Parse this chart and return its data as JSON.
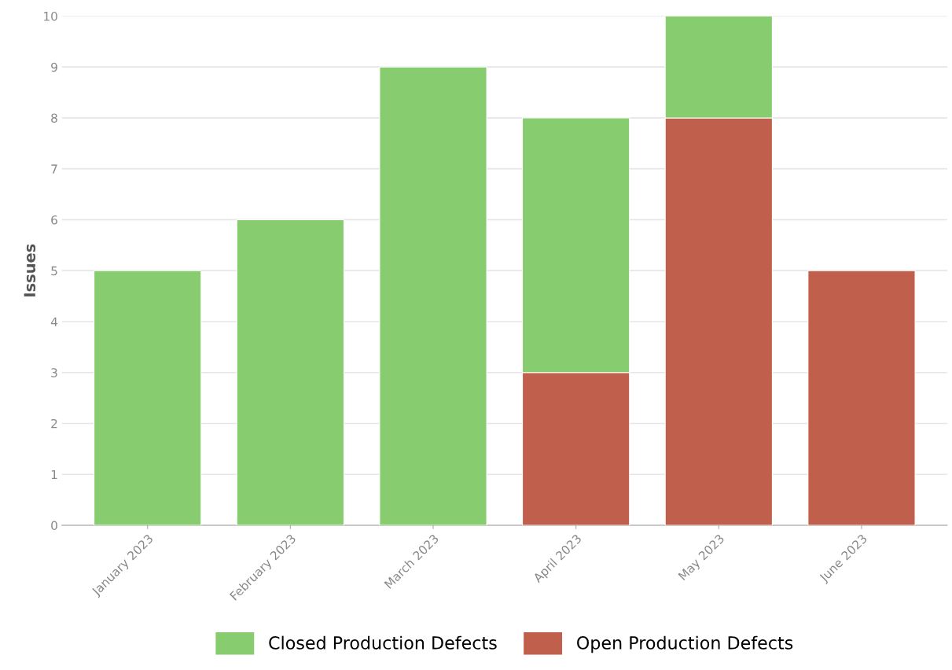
{
  "chart_data": {
    "type": "bar",
    "ylabel": "Issues",
    "stacked": true,
    "categories": [
      "January 2023",
      "February 2023",
      "March 2023",
      "April 2023",
      "May 2023",
      "June 2023"
    ],
    "series": [
      {
        "name": "Open Production Defects",
        "color": "#c0604c",
        "values": [
          0,
          0,
          0,
          3,
          8,
          5
        ]
      },
      {
        "name": "Closed Production Defects",
        "color": "#88cc70",
        "values": [
          5,
          6,
          9,
          5,
          2,
          0
        ]
      }
    ],
    "ylim": [
      0,
      10
    ],
    "yticks": [
      0,
      1,
      2,
      3,
      4,
      5,
      6,
      7,
      8,
      9,
      10
    ],
    "grid": "y",
    "legend": "bottom"
  }
}
